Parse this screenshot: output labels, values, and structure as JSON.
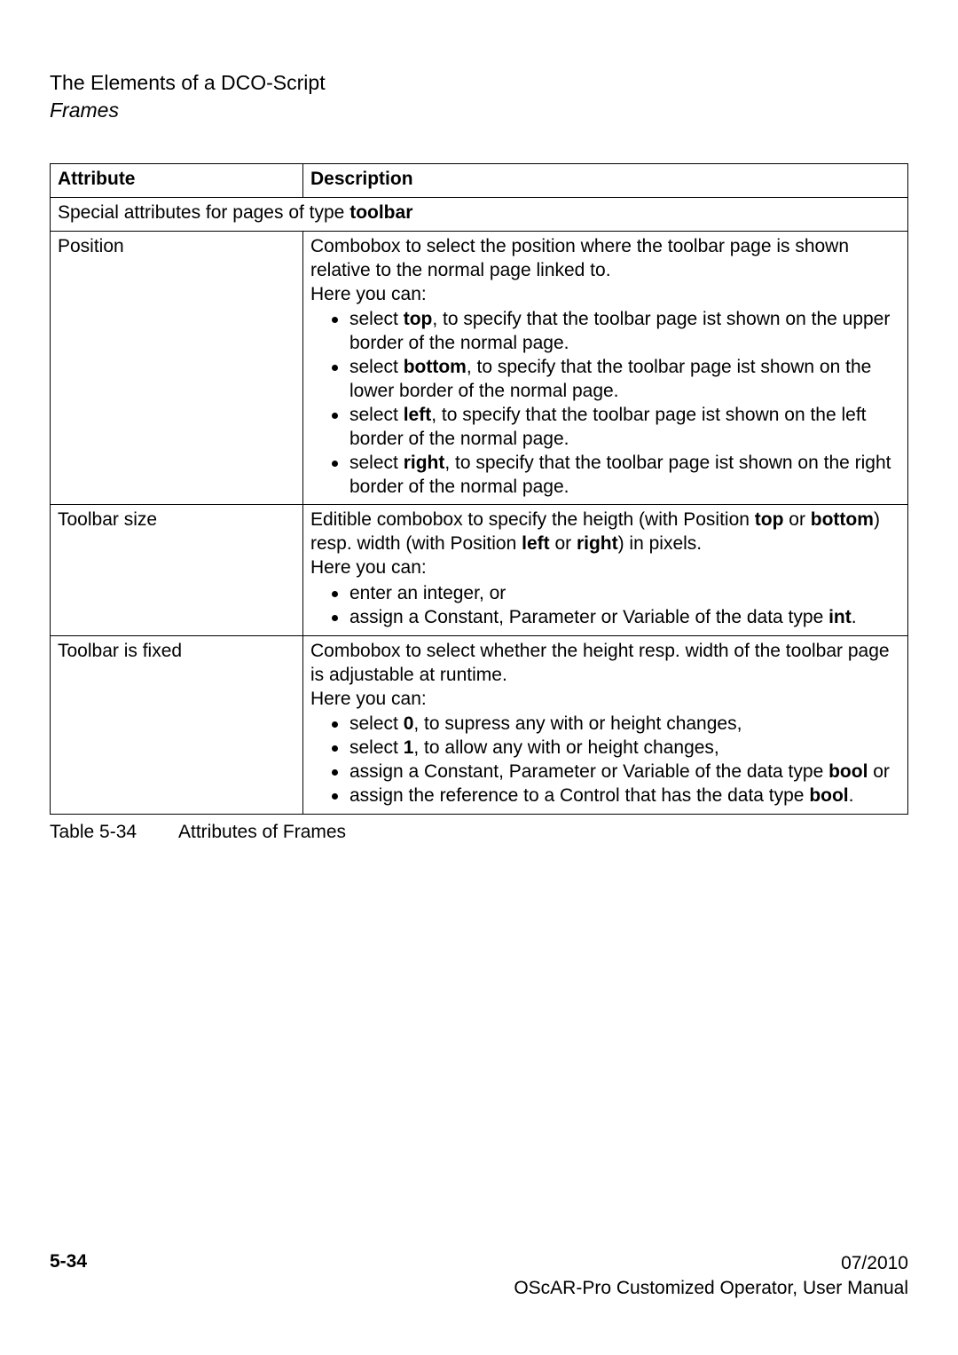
{
  "header": {
    "title": "The Elements of a DCO-Script",
    "subtitle": "Frames"
  },
  "table": {
    "columns": {
      "attribute": "Attribute",
      "description": "Description"
    },
    "section_label_prefix": "Special attributes for pages of type ",
    "section_label_bold": "toolbar",
    "rows": [
      {
        "attr": "Position",
        "intro": [
          "Combobox to select the position where the toolbar page is shown relative to the normal page linked to.",
          "Here you can:"
        ],
        "bullets": [
          {
            "pre": "select ",
            "bold": "top",
            "post": ", to specify that the toolbar page ist shown on the upper border of the normal page."
          },
          {
            "pre": "select ",
            "bold": "bottom",
            "post": ", to specify that the toolbar page ist shown on the lower border of the normal page."
          },
          {
            "pre": "select ",
            "bold": "left",
            "post": ", to specify that the toolbar page ist shown on the left border of the normal page."
          },
          {
            "pre": "select ",
            "bold": "right",
            "post": ", to specify that the toolbar page ist shown on the right border of the normal page."
          }
        ]
      },
      {
        "attr": "Toolbar size",
        "intro_segments": [
          {
            "t": "Editible combobox to specify the heigth (with Position "
          },
          {
            "t": "top",
            "b": true
          },
          {
            "t": " or "
          },
          {
            "t": "bottom",
            "b": true
          },
          {
            "t": ") resp. width (with Position "
          },
          {
            "t": "left",
            "b": true
          },
          {
            "t": " or "
          },
          {
            "t": "right",
            "b": true
          },
          {
            "t": ") in pixels."
          }
        ],
        "intro2": "Here you can:",
        "bullets": [
          {
            "pre": "enter an integer, or"
          },
          {
            "pre": "assign a Constant, Parameter or Variable of the data type ",
            "bold": "int",
            "post": "."
          }
        ]
      },
      {
        "attr": "Toolbar is fixed",
        "intro": [
          "Combobox to select whether the height resp. width of the tool­bar page is adjustable at runtime.",
          "Here you can:"
        ],
        "bullets": [
          {
            "pre": "select ",
            "bold": "0",
            "post": ", to supress any with or height changes,"
          },
          {
            "pre": "select ",
            "bold": "1",
            "post": ", to allow any with or height changes,"
          },
          {
            "pre": "assign a Constant, Parameter or Variable of the data type ",
            "bold": "bool",
            "post": " or"
          },
          {
            "pre": "assign the reference to a Control that has the data type ",
            "bold": "bool",
            "post": "."
          }
        ]
      }
    ]
  },
  "caption": {
    "num": "Table 5-34",
    "text": "Attributes of Frames"
  },
  "footer": {
    "page": "5-34",
    "date": "07/2010",
    "manual": "OScAR-Pro Customized Operator, User Manual"
  }
}
